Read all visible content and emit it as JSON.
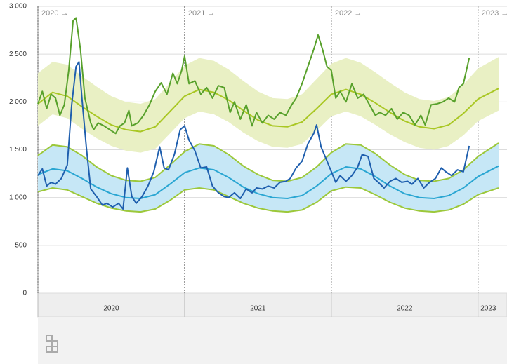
{
  "chart_data": {
    "type": "line",
    "ylim": [
      0,
      3000
    ],
    "yticks": [
      0,
      500,
      {
        "value": 1000,
        "label": "1 000"
      },
      {
        "value": 1500,
        "label": "1 500"
      },
      {
        "value": 2000,
        "label": "2 000"
      },
      {
        "value": 2500,
        "label": "2 500"
      },
      {
        "value": 3000,
        "label": "3 000"
      }
    ],
    "xlim": [
      2020,
      2023.14
    ],
    "xticks": [
      {
        "value": 2020.5,
        "label": "2020"
      },
      {
        "value": 2021.5,
        "label": "2021"
      },
      {
        "value": 2022.5,
        "label": "2022"
      },
      {
        "value": 2023.07,
        "label": "2023"
      }
    ],
    "year_markers": [
      {
        "x": 2020,
        "label": "2020 →"
      },
      {
        "x": 2021,
        "label": "2021 →"
      },
      {
        "x": 2022,
        "label": "2022 →"
      },
      {
        "x": 2023,
        "label": "2023 →"
      }
    ],
    "grid": true,
    "x": [
      2020.0,
      2020.1,
      2020.2,
      2020.3,
      2020.4,
      2020.5,
      2020.6,
      2020.7,
      2020.8,
      2020.9,
      2021.0,
      2021.1,
      2021.2,
      2021.3,
      2021.4,
      2021.5,
      2021.6,
      2021.7,
      2021.8,
      2021.9,
      2022.0,
      2022.1,
      2022.2,
      2022.3,
      2022.4,
      2022.5,
      2022.6,
      2022.7,
      2022.8,
      2022.9,
      2023.0,
      2023.14
    ],
    "bands": [
      {
        "color": "#e9f0c4",
        "upper": [
          2300,
          2420,
          2390,
          2270,
          2160,
          2060,
          2000,
          1980,
          2030,
          2200,
          2380,
          2460,
          2430,
          2340,
          2220,
          2110,
          2040,
          2030,
          2080,
          2240,
          2400,
          2460,
          2410,
          2310,
          2200,
          2100,
          2030,
          2010,
          2050,
          2180,
          2350,
          2470
        ],
        "lower": [
          1750,
          1870,
          1830,
          1720,
          1620,
          1540,
          1490,
          1470,
          1510,
          1670,
          1830,
          1900,
          1870,
          1790,
          1680,
          1590,
          1530,
          1520,
          1560,
          1700,
          1850,
          1900,
          1850,
          1760,
          1660,
          1580,
          1520,
          1500,
          1540,
          1650,
          1800,
          1910
        ]
      },
      {
        "color": "#c6e7f6",
        "edge_color": "#9cc83a",
        "upper": [
          1440,
          1550,
          1530,
          1440,
          1320,
          1230,
          1180,
          1170,
          1210,
          1340,
          1480,
          1560,
          1540,
          1450,
          1330,
          1240,
          1180,
          1170,
          1210,
          1320,
          1470,
          1560,
          1550,
          1460,
          1340,
          1240,
          1180,
          1170,
          1200,
          1290,
          1430,
          1570
        ],
        "lower": [
          1060,
          1100,
          1080,
          1010,
          940,
          890,
          860,
          850,
          880,
          970,
          1080,
          1100,
          1080,
          1010,
          940,
          890,
          860,
          850,
          870,
          950,
          1070,
          1110,
          1100,
          1030,
          950,
          890,
          860,
          850,
          870,
          930,
          1030,
          1100
        ]
      }
    ],
    "series": [
      {
        "color": "#a9c723",
        "values": [
          1980,
          2100,
          2060,
          1950,
          1850,
          1760,
          1710,
          1690,
          1740,
          1900,
          2060,
          2130,
          2100,
          2020,
          1910,
          1810,
          1750,
          1740,
          1790,
          1930,
          2080,
          2130,
          2080,
          1990,
          1890,
          1800,
          1740,
          1720,
          1760,
          1880,
          2030,
          2140
        ]
      },
      {
        "color": "#2aa6d2",
        "values": [
          1240,
          1300,
          1280,
          1200,
          1110,
          1040,
          1000,
          990,
          1030,
          1140,
          1260,
          1310,
          1290,
          1210,
          1110,
          1040,
          1000,
          990,
          1020,
          1120,
          1250,
          1320,
          1300,
          1220,
          1120,
          1040,
          1000,
          990,
          1020,
          1100,
          1220,
          1330
        ]
      },
      {
        "color": "#58a12c",
        "x": [
          2020.0,
          2020.03,
          2020.06,
          2020.09,
          2020.12,
          2020.15,
          2020.18,
          2020.21,
          2020.24,
          2020.26,
          2020.29,
          2020.32,
          2020.36,
          2020.38,
          2020.41,
          2020.45,
          2020.49,
          2020.53,
          2020.56,
          2020.59,
          2020.62,
          2020.64,
          2020.68,
          2020.72,
          2020.76,
          2020.8,
          2020.84,
          2020.88,
          2020.92,
          2020.95,
          2020.98,
          2021.0,
          2021.03,
          2021.07,
          2021.11,
          2021.15,
          2021.19,
          2021.23,
          2021.27,
          2021.31,
          2021.34,
          2021.38,
          2021.42,
          2021.46,
          2021.49,
          2021.53,
          2021.57,
          2021.61,
          2021.65,
          2021.69,
          2021.73,
          2021.76,
          2021.8,
          2021.84,
          2021.88,
          2021.91,
          2021.94,
          2021.97,
          2022.0,
          2022.03,
          2022.06,
          2022.1,
          2022.14,
          2022.18,
          2022.22,
          2022.26,
          2022.3,
          2022.33,
          2022.37,
          2022.41,
          2022.45,
          2022.49,
          2022.53,
          2022.57,
          2022.61,
          2022.64,
          2022.68,
          2022.72,
          2022.76,
          2022.8,
          2022.84,
          2022.87,
          2022.9,
          2022.94
        ],
        "values": [
          1980,
          2110,
          1930,
          2080,
          2040,
          1860,
          1970,
          2330,
          2850,
          2880,
          2550,
          2040,
          1780,
          1710,
          1780,
          1750,
          1710,
          1670,
          1750,
          1780,
          1910,
          1750,
          1780,
          1860,
          1970,
          2110,
          2200,
          2080,
          2300,
          2190,
          2330,
          2480,
          2190,
          2220,
          2080,
          2150,
          2040,
          2170,
          2150,
          1890,
          2000,
          1820,
          1970,
          1750,
          1890,
          1780,
          1860,
          1820,
          1890,
          1860,
          1970,
          2040,
          2190,
          2370,
          2550,
          2700,
          2550,
          2370,
          2330,
          2040,
          2110,
          2000,
          2190,
          2040,
          2080,
          1970,
          1860,
          1890,
          1860,
          1930,
          1820,
          1890,
          1860,
          1760,
          1860,
          1760,
          1970,
          1980,
          2000,
          2040,
          2000,
          2150,
          2190,
          2460
        ]
      },
      {
        "color": "#1f5fae",
        "x": [
          2020.0,
          2020.03,
          2020.06,
          2020.09,
          2020.12,
          2020.16,
          2020.2,
          2020.23,
          2020.26,
          2020.28,
          2020.3,
          2020.33,
          2020.36,
          2020.4,
          2020.44,
          2020.47,
          2020.51,
          2020.55,
          2020.58,
          2020.61,
          2020.64,
          2020.67,
          2020.71,
          2020.75,
          2020.79,
          2020.83,
          2020.86,
          2020.89,
          2020.93,
          2020.97,
          2021.0,
          2021.03,
          2021.07,
          2021.11,
          2021.15,
          2021.19,
          2021.23,
          2021.27,
          2021.3,
          2021.34,
          2021.38,
          2021.42,
          2021.46,
          2021.49,
          2021.53,
          2021.57,
          2021.61,
          2021.65,
          2021.69,
          2021.72,
          2021.76,
          2021.8,
          2021.84,
          2021.88,
          2021.9,
          2021.93,
          2021.96,
          2021.99,
          2022.03,
          2022.06,
          2022.1,
          2022.14,
          2022.18,
          2022.21,
          2022.25,
          2022.29,
          2022.32,
          2022.36,
          2022.4,
          2022.44,
          2022.48,
          2022.52,
          2022.55,
          2022.59,
          2022.63,
          2022.67,
          2022.71,
          2022.75,
          2022.78,
          2022.82,
          2022.86,
          2022.9,
          2022.94
        ],
        "values": [
          1230,
          1300,
          1120,
          1160,
          1140,
          1200,
          1340,
          1970,
          2370,
          2420,
          2040,
          1530,
          1090,
          1010,
          920,
          940,
          900,
          940,
          880,
          1310,
          1010,
          940,
          1010,
          1120,
          1270,
          1530,
          1310,
          1290,
          1450,
          1710,
          1750,
          1600,
          1490,
          1310,
          1320,
          1120,
          1050,
          1010,
          1000,
          1050,
          990,
          1090,
          1050,
          1100,
          1090,
          1120,
          1100,
          1160,
          1170,
          1200,
          1310,
          1380,
          1560,
          1670,
          1760,
          1530,
          1420,
          1310,
          1160,
          1230,
          1170,
          1230,
          1320,
          1450,
          1430,
          1200,
          1160,
          1100,
          1170,
          1200,
          1160,
          1170,
          1140,
          1200,
          1100,
          1160,
          1200,
          1310,
          1270,
          1230,
          1290,
          1270,
          1540
        ]
      }
    ]
  }
}
